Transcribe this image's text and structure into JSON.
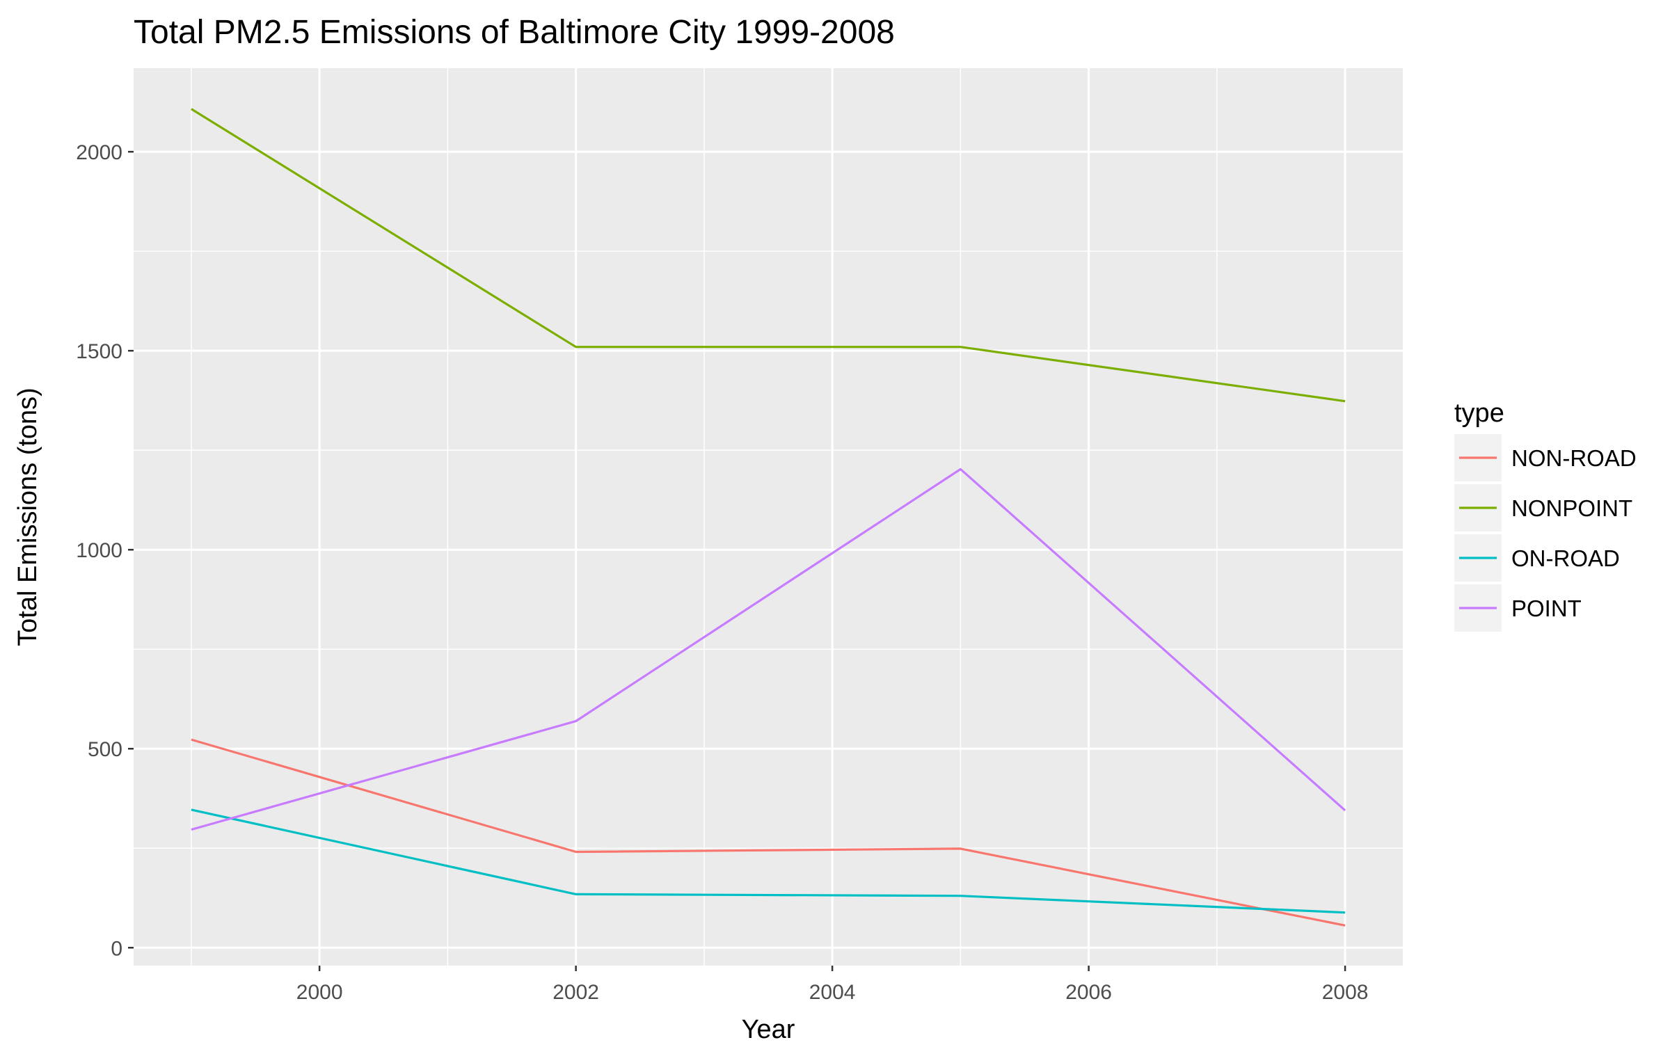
{
  "chart_data": {
    "type": "line",
    "title": "Total PM2.5 Emissions of Baltimore City 1999-2008",
    "xlabel": "Year",
    "ylabel": "Total Emissions (tons)",
    "x": [
      1999,
      2002,
      2005,
      2008
    ],
    "xlim": [
      1998.55,
      2008.45
    ],
    "ylim": [
      -45,
      2210
    ],
    "x_ticks": [
      2000,
      2002,
      2004,
      2006,
      2008
    ],
    "y_ticks": [
      0,
      500,
      1000,
      1500,
      2000
    ],
    "x_tick_labels": [
      "2000",
      "2002",
      "2004",
      "2006",
      "2008"
    ],
    "y_tick_labels": [
      "0",
      "500",
      "1000",
      "1500",
      "2000"
    ],
    "grid": true,
    "panel_background": "#ebebeb",
    "grid_color": "#ffffff",
    "legend": {
      "title": "type",
      "position": "right"
    },
    "series": [
      {
        "name": "NON-ROAD",
        "color": "#F8766D",
        "values": [
          522.9,
          240.8,
          248.9,
          55.8
        ]
      },
      {
        "name": "NONPOINT",
        "color": "#7CAE00",
        "values": [
          2107.6,
          1509.5,
          1509.5,
          1373.2
        ]
      },
      {
        "name": "ON-ROAD",
        "color": "#00BFC4",
        "values": [
          346.8,
          134.3,
          130.4,
          88.3
        ]
      },
      {
        "name": "POINT",
        "color": "#C77CFF",
        "values": [
          296.8,
          569.3,
          1202.5,
          344.98
        ]
      }
    ]
  }
}
